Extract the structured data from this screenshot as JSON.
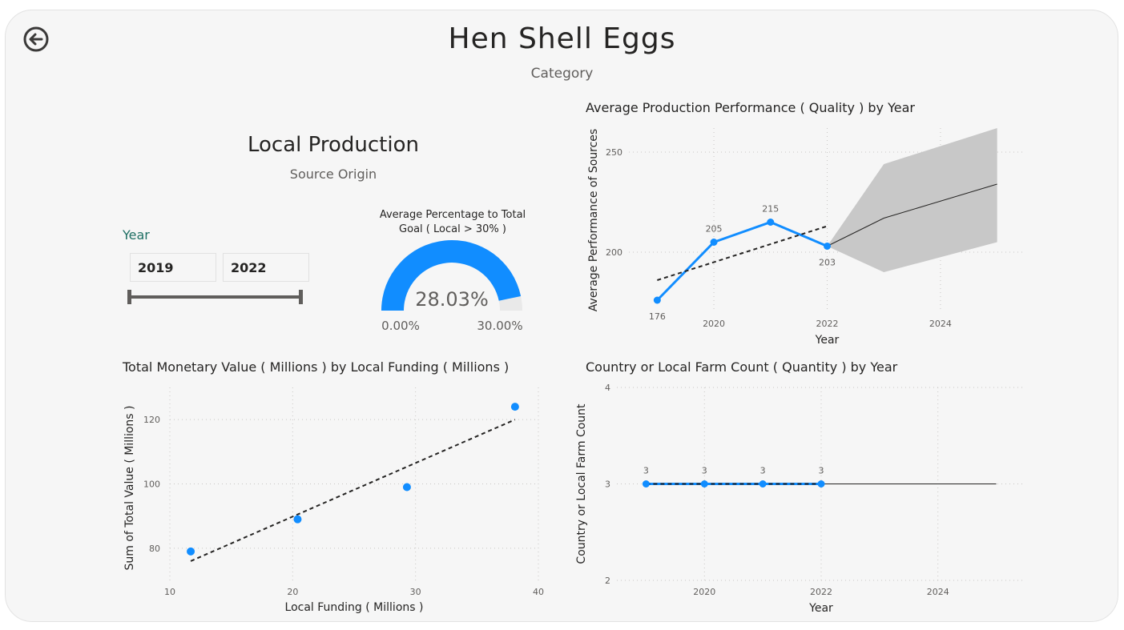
{
  "header": {
    "title": "Hen Shell Eggs",
    "subtitle": "Category"
  },
  "section": {
    "title": "Local Production",
    "subtitle": "Source Origin"
  },
  "slicer": {
    "label": "Year",
    "start": "2019",
    "end": "2022"
  },
  "gauge": {
    "title_line1": "Average Percentage to Total",
    "title_line2": "Goal ( Local > 30% )",
    "value": 28.03,
    "value_label": "28.03%",
    "min_label": "0.00%",
    "max_label": "30.00%",
    "min": 0,
    "max": 30,
    "color": "#118dff"
  },
  "chart_data": [
    {
      "type": "line",
      "title": "Average Production Performance ( Quality ) by Year",
      "xlabel": "Year",
      "ylabel": "Average Performance of Sources",
      "x_ticks": [
        "2020",
        "2022",
        "2024"
      ],
      "y_ticks": [
        "200",
        "250"
      ],
      "xlim": [
        2018.5,
        2025.5
      ],
      "ylim": [
        170,
        262
      ],
      "series": [
        {
          "x": [
            2019,
            2020,
            2021,
            2022
          ],
          "values": [
            176,
            205,
            215,
            203
          ],
          "labels": [
            "176",
            "205",
            "215",
            "203"
          ]
        }
      ],
      "trend": {
        "x": [
          2019,
          2022
        ],
        "values": [
          186,
          213
        ]
      },
      "forecast": {
        "x": [
          2022,
          2023,
          2025
        ],
        "values": [
          203,
          217,
          234
        ],
        "upper": [
          203,
          244,
          262
        ],
        "lower": [
          203,
          190,
          205
        ]
      },
      "color": "#118dff"
    },
    {
      "type": "scatter",
      "title": "Total Monetary Value ( Millions ) by Local Funding ( Millions )",
      "xlabel": "Local Funding ( Millions )",
      "ylabel": "Sum of Total Value ( Millions )",
      "x_ticks": [
        "10",
        "20",
        "30",
        "40"
      ],
      "y_ticks": [
        "80",
        "100",
        "120"
      ],
      "xlim": [
        10,
        40
      ],
      "ylim": [
        70,
        130
      ],
      "points": [
        {
          "x": 11.7,
          "y": 79
        },
        {
          "x": 20.4,
          "y": 89
        },
        {
          "x": 29.3,
          "y": 99
        },
        {
          "x": 38.1,
          "y": 124
        }
      ],
      "trend": {
        "x": [
          11.7,
          38.1
        ],
        "values": [
          76,
          120
        ]
      },
      "color": "#118dff"
    },
    {
      "type": "line",
      "title": "Country or Local Farm Count ( Quantity ) by Year",
      "xlabel": "Year",
      "ylabel": "Country or Local Farm Count",
      "x_ticks": [
        "2020",
        "2022",
        "2024"
      ],
      "y_ticks": [
        "2",
        "3",
        "4"
      ],
      "xlim": [
        2018.5,
        2025.5
      ],
      "ylim": [
        2,
        4
      ],
      "series": [
        {
          "x": [
            2019,
            2020,
            2021,
            2022
          ],
          "values": [
            3,
            3,
            3,
            3
          ],
          "labels": [
            "3",
            "3",
            "3",
            "3"
          ]
        }
      ],
      "trend": {
        "x": [
          2019,
          2022
        ],
        "values": [
          3,
          3
        ]
      },
      "forecast": {
        "x": [
          2022,
          2025
        ],
        "values": [
          3,
          3
        ]
      },
      "color": "#118dff"
    }
  ]
}
